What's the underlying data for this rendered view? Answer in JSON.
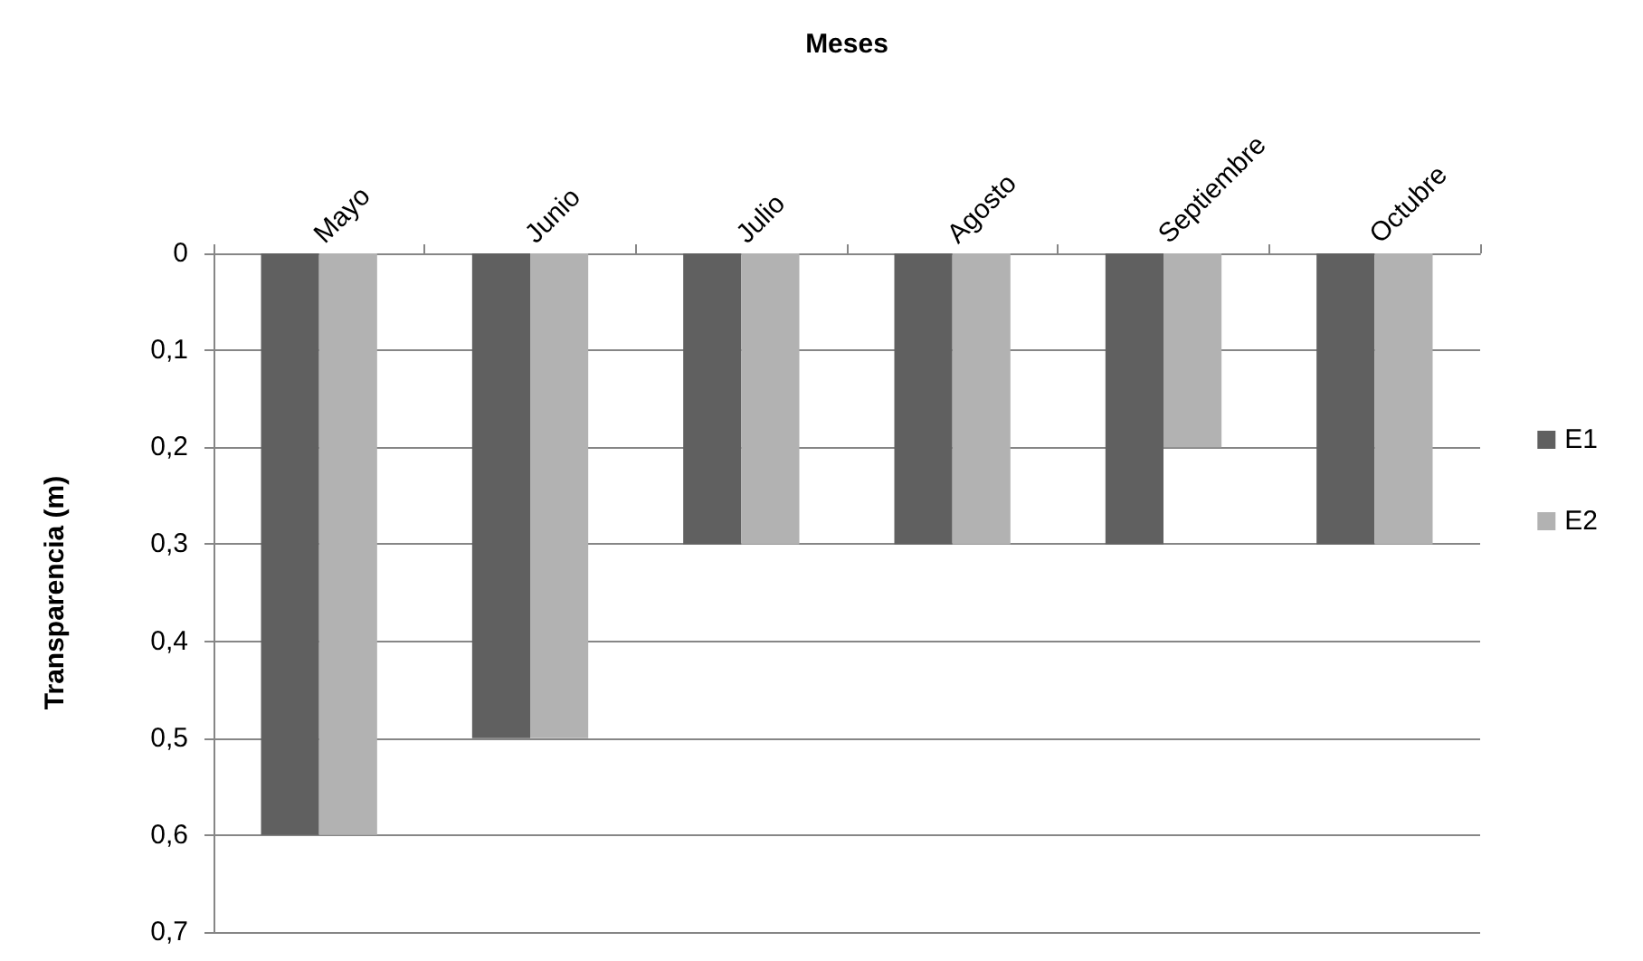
{
  "chart_data": {
    "type": "bar",
    "xlabel": "Meses",
    "ylabel": "Transparencia (m)",
    "categories": [
      "Mayo",
      "Junio",
      "Julio",
      "Agosto",
      "Septiembre",
      "Octubre"
    ],
    "series": [
      {
        "name": "E1",
        "color": "#606060",
        "values": [
          0.6,
          0.5,
          0.3,
          0.3,
          0.3,
          0.3
        ]
      },
      {
        "name": "E2",
        "color": "#b2b2b2",
        "values": [
          0.6,
          0.5,
          0.3,
          0.3,
          0.2,
          0.3
        ]
      }
    ],
    "ylim": [
      0.7,
      0
    ],
    "yticks": [
      0,
      {
        "value": 0.1,
        "label": "0,1"
      },
      {
        "value": 0.2,
        "label": "0,2"
      },
      {
        "value": 0.3,
        "label": "0,3"
      },
      {
        "value": 0.4,
        "label": "0,4"
      },
      {
        "value": 0.5,
        "label": "0,5"
      },
      {
        "value": 0.6,
        "label": "0,6"
      },
      {
        "value": 0.7,
        "label": "0,7"
      }
    ],
    "grid": "y",
    "legend": "right"
  }
}
